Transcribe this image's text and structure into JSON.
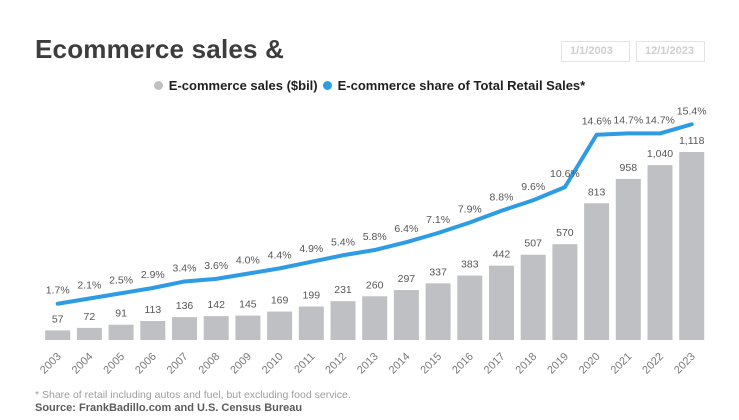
{
  "header": {
    "title": "Ecommerce sales &",
    "start_date": "1/1/2003",
    "end_date": "12/1/2023"
  },
  "legend": {
    "series1": "E-commerce sales ($bil)",
    "series2": "E-commerce share of Total Retail Sales*"
  },
  "chart_data": {
    "type": "bar+line",
    "title": "Ecommerce sales &",
    "categories": [
      2003,
      2004,
      2005,
      2006,
      2007,
      2008,
      2009,
      2010,
      2011,
      2012,
      2013,
      2014,
      2015,
      2016,
      2017,
      2018,
      2019,
      2020,
      2021,
      2022,
      2023
    ],
    "series": [
      {
        "name": "E-commerce sales ($bil)",
        "type": "bar",
        "values": [
          57,
          72,
          91,
          113,
          136,
          142,
          145,
          169,
          199,
          231,
          260,
          297,
          337,
          383,
          442,
          507,
          570,
          813,
          958,
          1040,
          1118
        ],
        "labels": [
          "57",
          "72",
          "91",
          "113",
          "136",
          "142",
          "145",
          "169",
          "199",
          "231",
          "260",
          "297",
          "337",
          "383",
          "442",
          "507",
          "570",
          "813",
          "958",
          "1,040",
          "1,118"
        ]
      },
      {
        "name": "E-commerce share of Total Retail Sales*",
        "type": "line",
        "values": [
          1.7,
          2.1,
          2.5,
          2.9,
          3.4,
          3.6,
          4.0,
          4.4,
          4.9,
          5.4,
          5.8,
          6.4,
          7.1,
          7.9,
          8.8,
          9.6,
          10.6,
          14.6,
          14.7,
          14.7,
          15.4
        ],
        "labels": [
          "1.7%",
          "2.1%",
          "2.5%",
          "2.9%",
          "3.4%",
          "3.6%",
          "4.0%",
          "4.4%",
          "4.9%",
          "5.4%",
          "5.8%",
          "6.4%",
          "7.1%",
          "7.9%",
          "8.8%",
          "9.6%",
          "10.6%",
          "14.6%",
          "14.7%",
          "14.7%",
          "15.4%"
        ]
      }
    ],
    "colors": {
      "bar": "#bec0c3",
      "line": "#2e9ce4",
      "value_label": "#565656",
      "pct_label": "#565656",
      "year_label": "#7a7a7a"
    },
    "legend_position": "top-center",
    "grid": false,
    "y_axis_visible": false
  },
  "footer": {
    "note": "* Share of retail including autos and fuel, but excluding food service.",
    "source": "Source: FrankBadillo.com and U.S. Census Bureau"
  }
}
